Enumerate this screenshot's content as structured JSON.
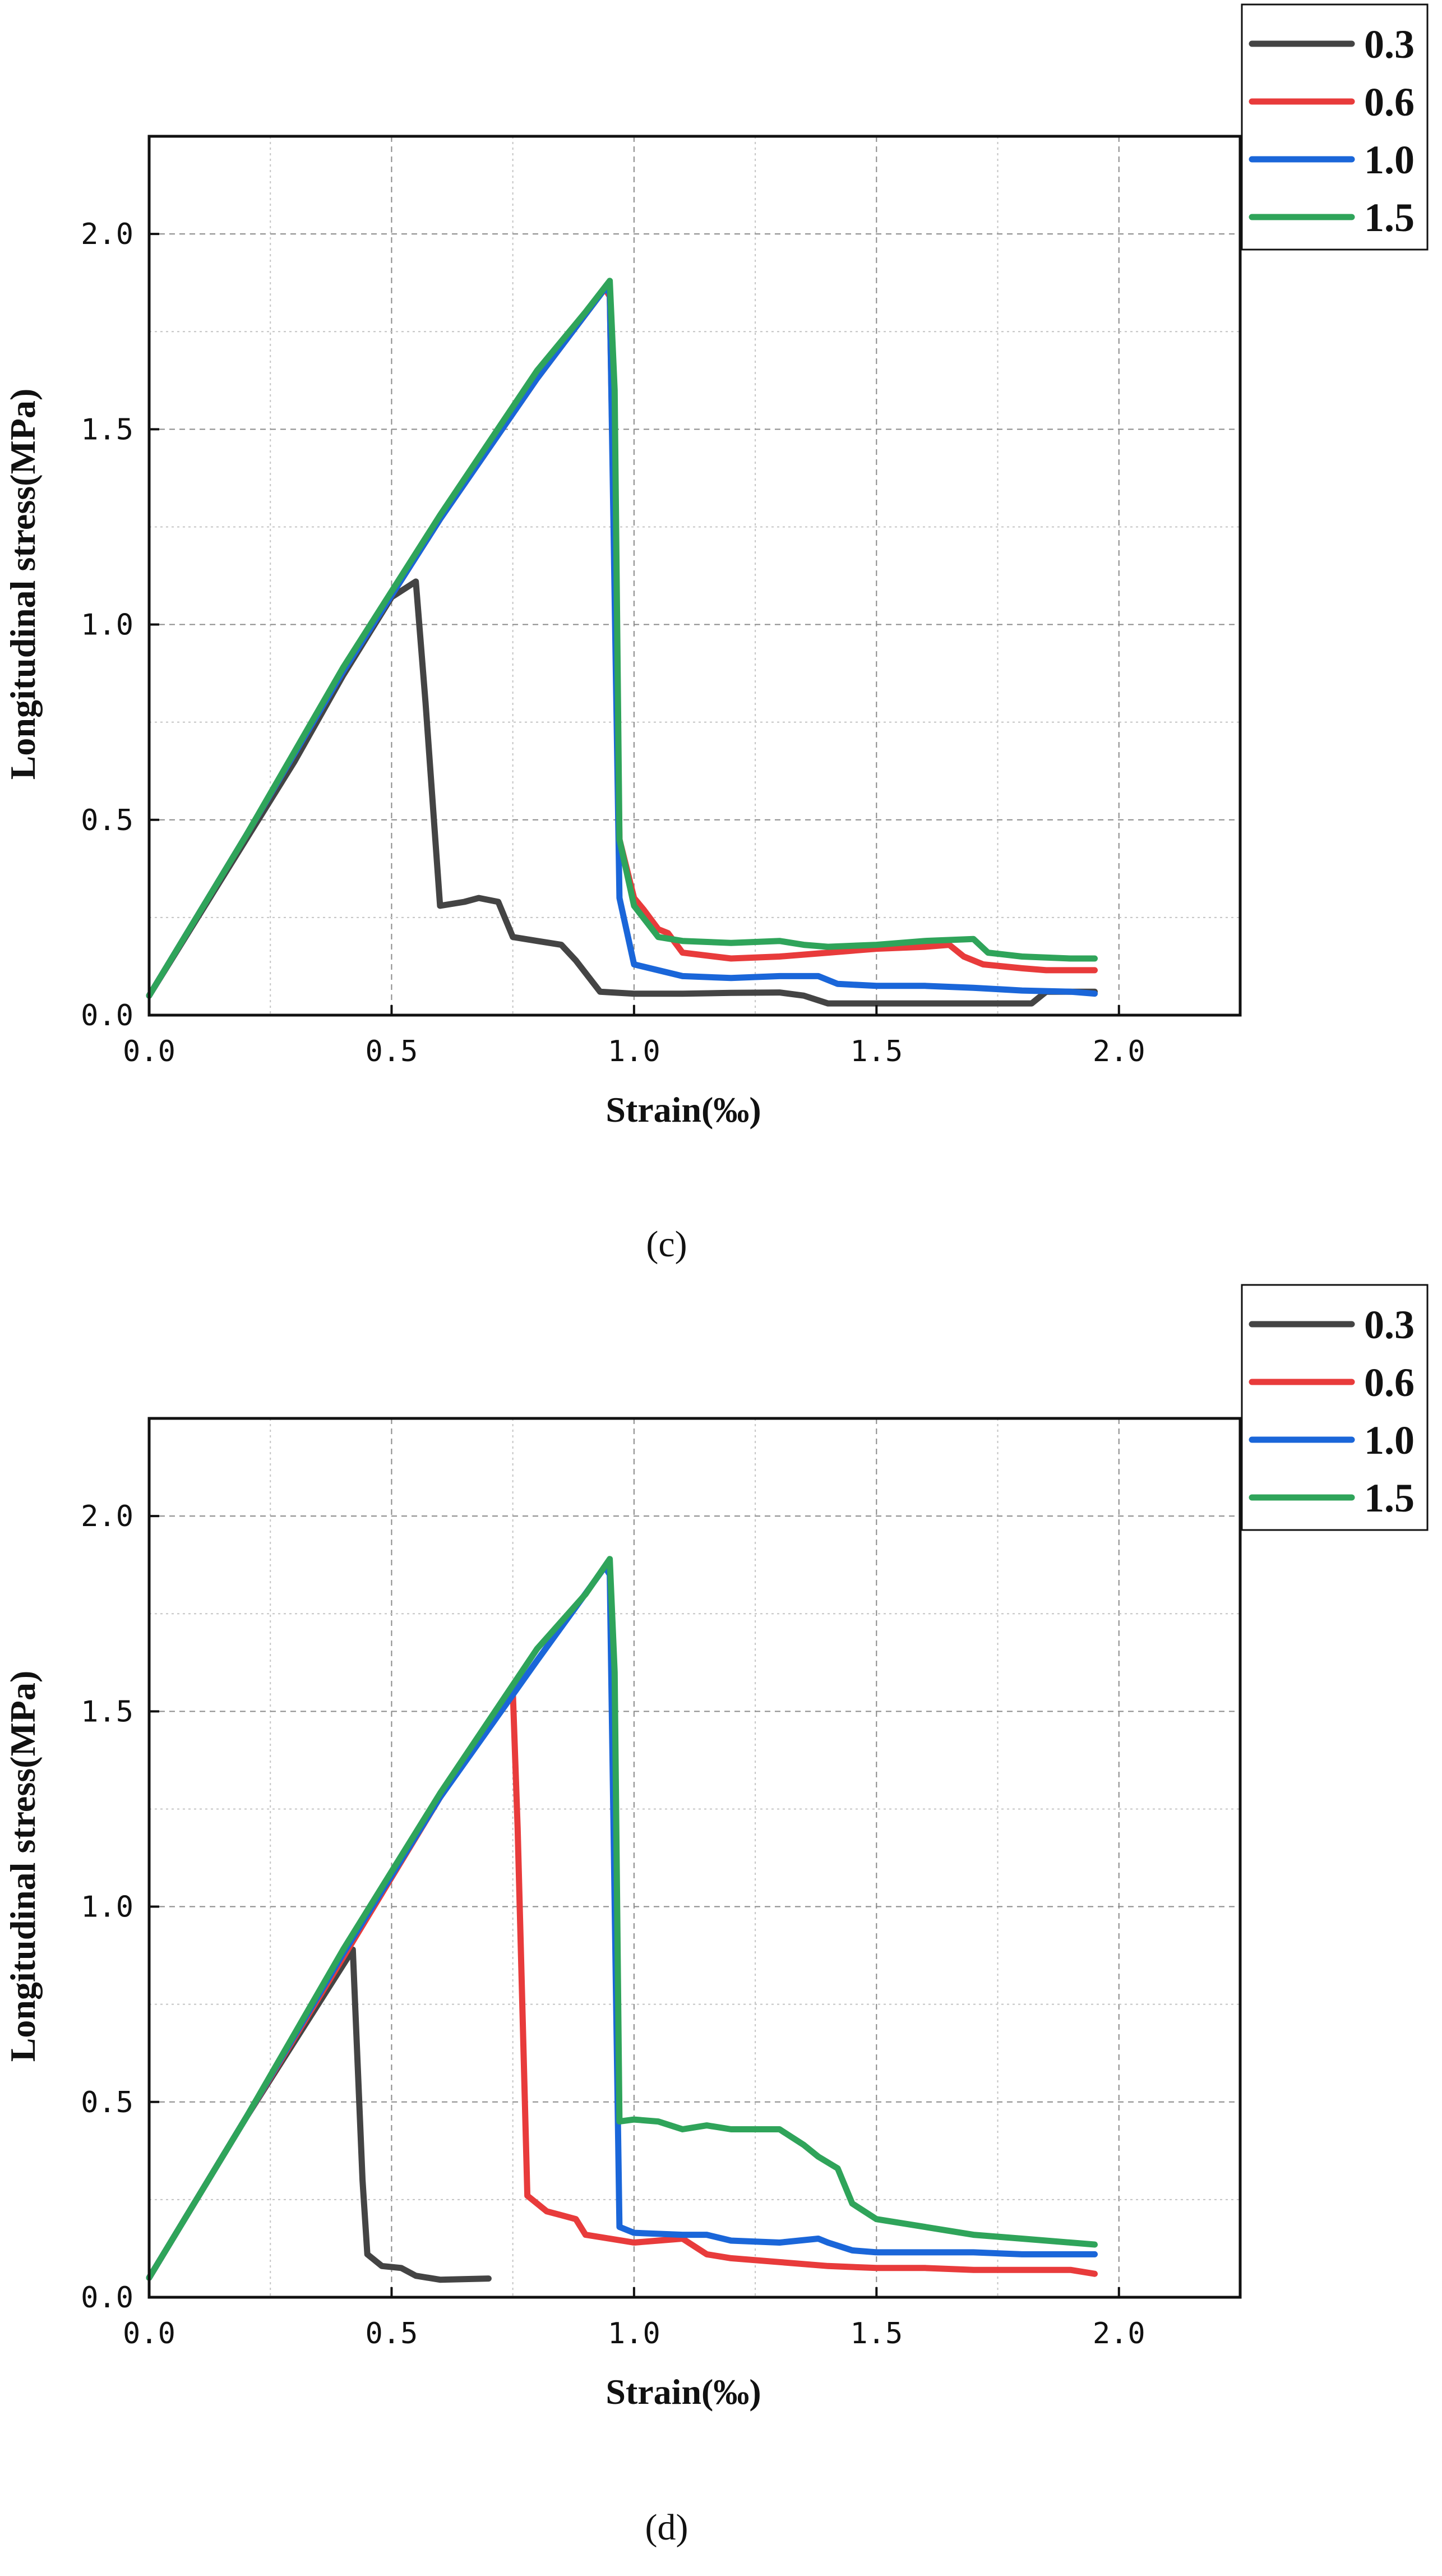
{
  "chart_data": [
    {
      "type": "line",
      "panel": "(c)",
      "xlabel": "Strain(‰)",
      "ylabel": "Longitudinal stress(MPa)",
      "xlim": [
        0,
        2.25
      ],
      "ylim": [
        0,
        2.25
      ],
      "xticks": [
        "0.0",
        "0.5",
        "1.0",
        "1.5",
        "2.0"
      ],
      "yticks": [
        "0.0",
        "0.5",
        "1.0",
        "1.5",
        "2.0"
      ],
      "grid": true,
      "legend_position": "outside-top-right",
      "series": [
        {
          "name": "0.3",
          "color": "#444444",
          "points": [
            [
              0,
              0.05
            ],
            [
              0.1,
              0.25
            ],
            [
              0.2,
              0.45
            ],
            [
              0.3,
              0.65
            ],
            [
              0.4,
              0.87
            ],
            [
              0.5,
              1.07
            ],
            [
              0.55,
              1.11
            ],
            [
              0.57,
              0.8
            ],
            [
              0.6,
              0.28
            ],
            [
              0.65,
              0.29
            ],
            [
              0.68,
              0.3
            ],
            [
              0.72,
              0.29
            ],
            [
              0.75,
              0.2
            ],
            [
              0.8,
              0.19
            ],
            [
              0.85,
              0.18
            ],
            [
              0.88,
              0.14
            ],
            [
              0.93,
              0.06
            ],
            [
              1.0,
              0.055
            ],
            [
              1.1,
              0.055
            ],
            [
              1.2,
              0.057
            ],
            [
              1.3,
              0.058
            ],
            [
              1.35,
              0.05
            ],
            [
              1.4,
              0.03
            ],
            [
              1.5,
              0.03
            ],
            [
              1.6,
              0.03
            ],
            [
              1.7,
              0.03
            ],
            [
              1.82,
              0.03
            ],
            [
              1.85,
              0.06
            ],
            [
              1.95,
              0.06
            ]
          ]
        },
        {
          "name": "0.6",
          "color": "#e83b3b",
          "points": [
            [
              0,
              0.05
            ],
            [
              0.2,
              0.46
            ],
            [
              0.4,
              0.88
            ],
            [
              0.6,
              1.27
            ],
            [
              0.8,
              1.63
            ],
            [
              0.94,
              1.86
            ],
            [
              0.95,
              1.84
            ],
            [
              0.97,
              0.45
            ],
            [
              1.0,
              0.3
            ],
            [
              1.02,
              0.27
            ],
            [
              1.05,
              0.22
            ],
            [
              1.07,
              0.21
            ],
            [
              1.1,
              0.16
            ],
            [
              1.2,
              0.145
            ],
            [
              1.3,
              0.15
            ],
            [
              1.4,
              0.16
            ],
            [
              1.5,
              0.17
            ],
            [
              1.6,
              0.175
            ],
            [
              1.65,
              0.18
            ],
            [
              1.68,
              0.15
            ],
            [
              1.72,
              0.13
            ],
            [
              1.8,
              0.12
            ],
            [
              1.85,
              0.115
            ],
            [
              1.95,
              0.115
            ]
          ]
        },
        {
          "name": "1.0",
          "color": "#1a66d9",
          "points": [
            [
              0,
              0.05
            ],
            [
              0.2,
              0.46
            ],
            [
              0.4,
              0.88
            ],
            [
              0.6,
              1.27
            ],
            [
              0.8,
              1.63
            ],
            [
              0.94,
              1.86
            ],
            [
              0.95,
              1.85
            ],
            [
              0.97,
              0.3
            ],
            [
              1.0,
              0.13
            ],
            [
              1.1,
              0.1
            ],
            [
              1.2,
              0.095
            ],
            [
              1.3,
              0.1
            ],
            [
              1.38,
              0.1
            ],
            [
              1.42,
              0.08
            ],
            [
              1.5,
              0.075
            ],
            [
              1.6,
              0.075
            ],
            [
              1.7,
              0.07
            ],
            [
              1.8,
              0.063
            ],
            [
              1.9,
              0.06
            ],
            [
              1.95,
              0.055
            ]
          ]
        },
        {
          "name": "1.5",
          "color": "#2fa45a",
          "points": [
            [
              0,
              0.05
            ],
            [
              0.2,
              0.46
            ],
            [
              0.4,
              0.89
            ],
            [
              0.6,
              1.28
            ],
            [
              0.8,
              1.65
            ],
            [
              0.9,
              1.8
            ],
            [
              0.95,
              1.88
            ],
            [
              0.96,
              1.6
            ],
            [
              0.97,
              0.45
            ],
            [
              1.0,
              0.28
            ],
            [
              1.05,
              0.2
            ],
            [
              1.1,
              0.19
            ],
            [
              1.2,
              0.185
            ],
            [
              1.3,
              0.19
            ],
            [
              1.35,
              0.18
            ],
            [
              1.4,
              0.175
            ],
            [
              1.5,
              0.18
            ],
            [
              1.6,
              0.19
            ],
            [
              1.7,
              0.195
            ],
            [
              1.73,
              0.16
            ],
            [
              1.8,
              0.15
            ],
            [
              1.9,
              0.145
            ],
            [
              1.95,
              0.145
            ]
          ]
        }
      ]
    },
    {
      "type": "line",
      "panel": "(d)",
      "xlabel": "Strain(‰)",
      "ylabel": "Longitudinal stress(MPa)",
      "xlim": [
        0,
        2.25
      ],
      "ylim": [
        0,
        2.25
      ],
      "xticks": [
        "0.0",
        "0.5",
        "1.0",
        "1.5",
        "2.0"
      ],
      "yticks": [
        "0.0",
        "0.5",
        "1.0",
        "1.5",
        "2.0"
      ],
      "grid": true,
      "legend_position": "outside-top-right",
      "series": [
        {
          "name": "0.3",
          "color": "#444444",
          "points": [
            [
              0,
              0.05
            ],
            [
              0.2,
              0.46
            ],
            [
              0.42,
              0.89
            ],
            [
              0.44,
              0.3
            ],
            [
              0.45,
              0.11
            ],
            [
              0.48,
              0.08
            ],
            [
              0.52,
              0.075
            ],
            [
              0.55,
              0.055
            ],
            [
              0.6,
              0.045
            ],
            [
              0.7,
              0.048
            ]
          ]
        },
        {
          "name": "0.6",
          "color": "#e83b3b",
          "points": [
            [
              0,
              0.05
            ],
            [
              0.2,
              0.46
            ],
            [
              0.4,
              0.87
            ],
            [
              0.6,
              1.28
            ],
            [
              0.75,
              1.55
            ],
            [
              0.76,
              1.2
            ],
            [
              0.78,
              0.26
            ],
            [
              0.82,
              0.22
            ],
            [
              0.85,
              0.21
            ],
            [
              0.88,
              0.2
            ],
            [
              0.9,
              0.16
            ],
            [
              0.95,
              0.15
            ],
            [
              1.0,
              0.14
            ],
            [
              1.1,
              0.15
            ],
            [
              1.15,
              0.11
            ],
            [
              1.2,
              0.1
            ],
            [
              1.3,
              0.09
            ],
            [
              1.4,
              0.08
            ],
            [
              1.5,
              0.075
            ],
            [
              1.6,
              0.075
            ],
            [
              1.7,
              0.07
            ],
            [
              1.8,
              0.07
            ],
            [
              1.9,
              0.07
            ],
            [
              1.95,
              0.06
            ]
          ]
        },
        {
          "name": "1.0",
          "color": "#1a66d9",
          "points": [
            [
              0,
              0.05
            ],
            [
              0.2,
              0.46
            ],
            [
              0.4,
              0.88
            ],
            [
              0.6,
              1.28
            ],
            [
              0.8,
              1.63
            ],
            [
              0.94,
              1.87
            ],
            [
              0.95,
              1.85
            ],
            [
              0.97,
              0.18
            ],
            [
              1.0,
              0.165
            ],
            [
              1.1,
              0.16
            ],
            [
              1.15,
              0.16
            ],
            [
              1.2,
              0.145
            ],
            [
              1.3,
              0.14
            ],
            [
              1.38,
              0.15
            ],
            [
              1.4,
              0.14
            ],
            [
              1.45,
              0.12
            ],
            [
              1.5,
              0.115
            ],
            [
              1.6,
              0.115
            ],
            [
              1.7,
              0.115
            ],
            [
              1.8,
              0.11
            ],
            [
              1.9,
              0.11
            ],
            [
              1.95,
              0.11
            ]
          ]
        },
        {
          "name": "1.5",
          "color": "#2fa45a",
          "points": [
            [
              0,
              0.05
            ],
            [
              0.2,
              0.46
            ],
            [
              0.4,
              0.89
            ],
            [
              0.6,
              1.29
            ],
            [
              0.8,
              1.66
            ],
            [
              0.9,
              1.8
            ],
            [
              0.95,
              1.89
            ],
            [
              0.96,
              1.6
            ],
            [
              0.97,
              0.45
            ],
            [
              1.0,
              0.455
            ],
            [
              1.05,
              0.45
            ],
            [
              1.1,
              0.43
            ],
            [
              1.15,
              0.44
            ],
            [
              1.2,
              0.43
            ],
            [
              1.3,
              0.43
            ],
            [
              1.35,
              0.39
            ],
            [
              1.38,
              0.36
            ],
            [
              1.42,
              0.33
            ],
            [
              1.45,
              0.24
            ],
            [
              1.5,
              0.2
            ],
            [
              1.6,
              0.18
            ],
            [
              1.7,
              0.16
            ],
            [
              1.8,
              0.15
            ],
            [
              1.9,
              0.14
            ],
            [
              1.95,
              0.135
            ]
          ]
        }
      ]
    }
  ]
}
